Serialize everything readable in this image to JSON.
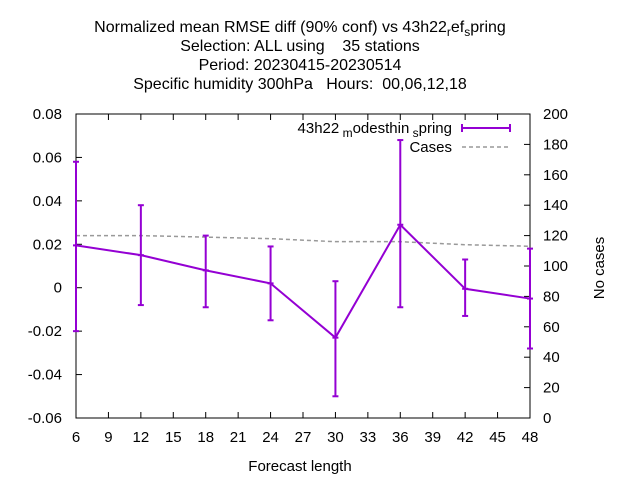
{
  "chart_data": {
    "type": "line",
    "title_lines": [
      "Normalized mean RMSE diff (90% conf) vs 43h22_ref_spring",
      "Selection: ALL using    35 stations",
      "Period: 20230415-20230514",
      "Specific humidity 300hPa   Hours:  00,06,12,18"
    ],
    "xlabel": "Forecast length",
    "ylabel": "",
    "y2label": "No cases",
    "xlim": [
      6,
      48
    ],
    "ylim": [
      -0.06,
      0.08
    ],
    "y2lim": [
      0,
      200
    ],
    "xticks": [
      6,
      9,
      12,
      15,
      18,
      21,
      24,
      27,
      30,
      33,
      36,
      39,
      42,
      45,
      48
    ],
    "yticks": [
      -0.06,
      -0.04,
      -0.02,
      0,
      0.02,
      0.04,
      0.06,
      0.08
    ],
    "yticklabels": [
      "-0.06",
      "-0.04",
      "-0.02",
      "0",
      "0.02",
      "0.04",
      "0.06",
      "0.08"
    ],
    "y2ticks": [
      0,
      20,
      40,
      60,
      80,
      100,
      120,
      140,
      160,
      180,
      200
    ],
    "legend_position": "top-right",
    "series": [
      {
        "name": "43h22_modesthin_spring",
        "color": "#9400d3",
        "style": "line-errorbars",
        "x": [
          6,
          12,
          18,
          24,
          30,
          36,
          42,
          48
        ],
        "y": [
          0.0195,
          0.015,
          0.008,
          0.002,
          -0.023,
          0.029,
          -0.0005,
          -0.005
        ],
        "y_low": [
          -0.02,
          -0.008,
          -0.009,
          -0.015,
          -0.05,
          -0.009,
          -0.013,
          -0.028
        ],
        "y_high": [
          0.058,
          0.038,
          0.024,
          0.019,
          0.003,
          0.068,
          0.013,
          0.018
        ]
      },
      {
        "name": "Cases",
        "color": "#999999",
        "style": "dashed",
        "axis": "y2",
        "x": [
          6,
          12,
          18,
          24,
          30,
          36,
          42,
          48
        ],
        "y": [
          120,
          120,
          119,
          118,
          116,
          116,
          114,
          113
        ]
      }
    ]
  }
}
